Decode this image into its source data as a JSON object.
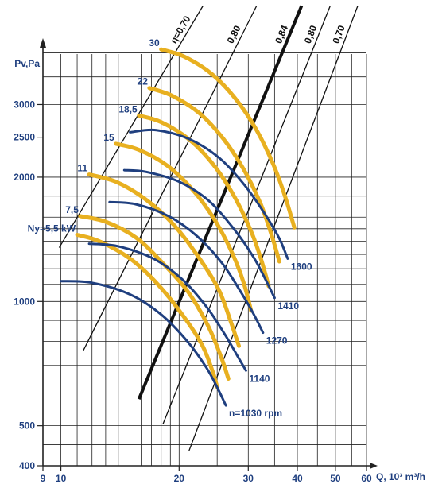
{
  "chart_data": {
    "type": "line",
    "title": "",
    "xlabel": "Q, 10³ m³/h",
    "ylabel": "Pv,Pa",
    "x_scale": "log",
    "y_scale": "log",
    "xlim": [
      9,
      60
    ],
    "ylim": [
      400,
      4500
    ],
    "grid": true,
    "x_ticks": [
      9,
      10,
      20,
      30,
      40,
      50,
      60
    ],
    "x_tick_labels": [
      "9",
      "10",
      "20",
      "30",
      "40",
      "50",
      "60"
    ],
    "y_ticks": [
      400,
      500,
      1000,
      2000,
      2500,
      3000
    ],
    "y_tick_labels": [
      "400",
      "500",
      "1000",
      "2000",
      "2500",
      "3000"
    ],
    "colors": {
      "speed_curve": "#1f3f7f",
      "power_curve": "#e8b020",
      "efficiency_line": "#111111",
      "grid": "#222222",
      "text": "#1f3f7f"
    },
    "power_curves": [
      {
        "label": "Ny=5,5 kW",
        "points": [
          [
            11.0,
            1450
          ],
          [
            12.5,
            1400
          ],
          [
            15.0,
            1270
          ],
          [
            17.5,
            1110
          ],
          [
            20.2,
            940
          ],
          [
            22.8,
            790
          ],
          [
            24.3,
            680
          ],
          [
            25.0,
            620
          ]
        ]
      },
      {
        "label": "7,5",
        "points": [
          [
            11.2,
            1610
          ],
          [
            13.0,
            1560
          ],
          [
            15.5,
            1430
          ],
          [
            18.0,
            1250
          ],
          [
            21.0,
            1060
          ],
          [
            23.6,
            880
          ],
          [
            25.5,
            740
          ],
          [
            26.7,
            650
          ]
        ]
      },
      {
        "label": "11",
        "points": [
          [
            11.8,
            2030
          ],
          [
            13.8,
            1950
          ],
          [
            16.4,
            1770
          ],
          [
            19.3,
            1540
          ],
          [
            22.3,
            1290
          ],
          [
            25.2,
            1070
          ],
          [
            27.0,
            900
          ],
          [
            28.4,
            780
          ]
        ]
      },
      {
        "label": "15",
        "points": [
          [
            13.8,
            2410
          ],
          [
            15.8,
            2330
          ],
          [
            18.7,
            2130
          ],
          [
            21.8,
            1850
          ],
          [
            24.8,
            1560
          ],
          [
            27.4,
            1300
          ],
          [
            29.2,
            1110
          ],
          [
            30.5,
            950
          ]
        ]
      },
      {
        "label": "18,5",
        "points": [
          [
            15.8,
            2820
          ],
          [
            18.0,
            2720
          ],
          [
            21.2,
            2470
          ],
          [
            24.5,
            2140
          ],
          [
            27.6,
            1800
          ],
          [
            30.4,
            1490
          ],
          [
            32.3,
            1270
          ],
          [
            33.8,
            1090
          ]
        ]
      },
      {
        "label": "22",
        "points": [
          [
            16.8,
            3290
          ],
          [
            19.2,
            3150
          ],
          [
            22.5,
            2860
          ],
          [
            25.9,
            2480
          ],
          [
            29.2,
            2090
          ],
          [
            32.2,
            1730
          ],
          [
            34.3,
            1460
          ],
          [
            36.0,
            1250
          ]
        ]
      },
      {
        "label": "30",
        "points": [
          [
            18.0,
            4080
          ],
          [
            20.6,
            3920
          ],
          [
            24.2,
            3560
          ],
          [
            27.9,
            3090
          ],
          [
            31.5,
            2600
          ],
          [
            34.8,
            2140
          ],
          [
            37.2,
            1800
          ],
          [
            39.3,
            1510
          ]
        ]
      }
    ],
    "speed_curves": [
      {
        "label": "n=1030 rpm",
        "points": [
          [
            10.0,
            1120
          ],
          [
            12.0,
            1110
          ],
          [
            15.0,
            1040
          ],
          [
            18.0,
            930
          ],
          [
            21.0,
            800
          ],
          [
            23.5,
            690
          ],
          [
            25.2,
            610
          ],
          [
            26.3,
            560
          ]
        ]
      },
      {
        "label": "1140",
        "points": [
          [
            11.8,
            1380
          ],
          [
            14.0,
            1360
          ],
          [
            17.2,
            1270
          ],
          [
            20.4,
            1130
          ],
          [
            23.5,
            970
          ],
          [
            26.2,
            830
          ],
          [
            28.1,
            740
          ],
          [
            29.6,
            680
          ]
        ]
      },
      {
        "label": "1270",
        "points": [
          [
            13.3,
            1740
          ],
          [
            15.5,
            1720
          ],
          [
            18.8,
            1610
          ],
          [
            22.2,
            1440
          ],
          [
            25.7,
            1240
          ],
          [
            28.8,
            1050
          ],
          [
            31.0,
            930
          ],
          [
            32.7,
            840
          ]
        ]
      },
      {
        "label": "1410",
        "points": [
          [
            14.5,
            2080
          ],
          [
            16.5,
            2060
          ],
          [
            20.0,
            1950
          ],
          [
            23.7,
            1760
          ],
          [
            27.4,
            1510
          ],
          [
            30.8,
            1290
          ],
          [
            33.2,
            1130
          ],
          [
            35.0,
            1020
          ]
        ]
      },
      {
        "label": "1600",
        "points": [
          [
            15.0,
            2570
          ],
          [
            17.5,
            2600
          ],
          [
            21.3,
            2470
          ],
          [
            25.4,
            2220
          ],
          [
            29.4,
            1910
          ],
          [
            33.2,
            1620
          ],
          [
            36.0,
            1420
          ],
          [
            37.8,
            1270
          ]
        ]
      }
    ],
    "efficiency_lines": [
      {
        "label": "η=0,70",
        "heavy": false,
        "from": [
          9.9,
          1350
        ],
        "to": [
          23.0,
          5200
        ]
      },
      {
        "label": "0,80",
        "heavy": false,
        "from": [
          11.4,
          760
        ],
        "to": [
          31.5,
          5200
        ]
      },
      {
        "label": "0,84",
        "heavy": true,
        "from": [
          15.8,
          580
        ],
        "to": [
          41.0,
          5200
        ]
      },
      {
        "label": "0,80",
        "heavy": false,
        "from": [
          18.2,
          505
        ],
        "to": [
          48.5,
          5200
        ]
      },
      {
        "label": "0,70",
        "heavy": false,
        "from": [
          21.2,
          435
        ],
        "to": [
          57.0,
          5200
        ]
      }
    ]
  }
}
